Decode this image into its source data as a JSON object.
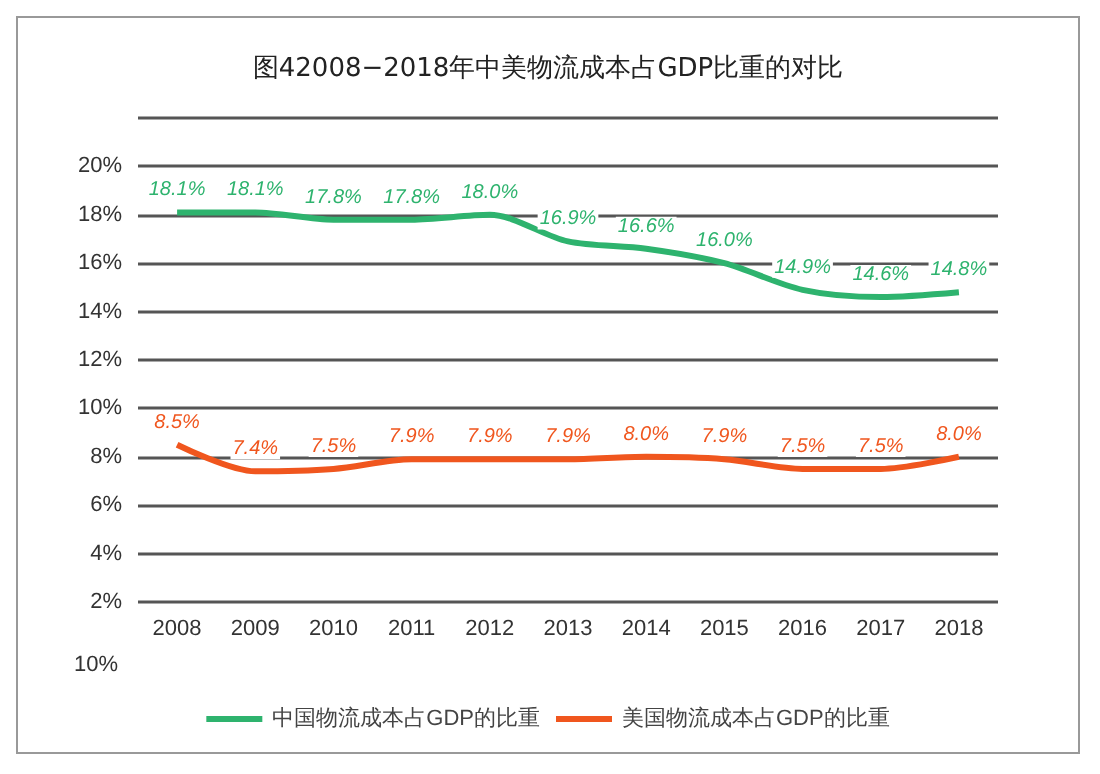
{
  "chart_data": {
    "type": "line",
    "title": "图42008−2018年中美物流成本占GDP比重的对比",
    "categories": [
      "2008",
      "2009",
      "2010",
      "2011",
      "2012",
      "2013",
      "2014",
      "2015",
      "2016",
      "2017",
      "2018"
    ],
    "series": [
      {
        "name": "中国物流成本占GDP的比重",
        "color": "#2eb36e",
        "values": [
          18.1,
          18.1,
          17.8,
          17.8,
          18.0,
          16.9,
          16.6,
          16.0,
          14.9,
          14.6,
          14.8
        ],
        "value_labels": [
          "18.1%",
          "18.1%",
          "17.8%",
          "17.8%",
          "18.0%",
          "16.9%",
          "16.6%",
          "16.0%",
          "14.9%",
          "14.6%",
          "14.8%"
        ]
      },
      {
        "name": "美国物流成本占GDP的比重",
        "color": "#f0561e",
        "values": [
          8.5,
          7.4,
          7.5,
          7.9,
          7.9,
          7.9,
          8.0,
          7.9,
          7.5,
          7.5,
          8.0
        ],
        "value_labels": [
          "8.5%",
          "7.4%",
          "7.5%",
          "7.9%",
          "7.9%",
          "7.9%",
          "8.0%",
          "7.9%",
          "7.5%",
          "7.5%",
          "8.0%"
        ]
      }
    ],
    "ylim": [
      2,
      22
    ],
    "yticks": [
      {
        "value": 2,
        "label": "2%"
      },
      {
        "value": 4,
        "label": "4%"
      },
      {
        "value": 6,
        "label": "6%"
      },
      {
        "value": 8,
        "label": "8%"
      },
      {
        "value": 10,
        "label": "10%"
      },
      {
        "value": 12,
        "label": "12%"
      },
      {
        "value": 14,
        "label": "14%"
      },
      {
        "value": 16,
        "label": "16%"
      },
      {
        "value": 18,
        "label": "18%"
      },
      {
        "value": 20,
        "label": "20%"
      },
      {
        "value": 22,
        "label": null
      }
    ],
    "annotations": [
      "10%"
    ],
    "grid": "y",
    "legend": "bottom",
    "marker": "none",
    "line_style": "solid"
  }
}
